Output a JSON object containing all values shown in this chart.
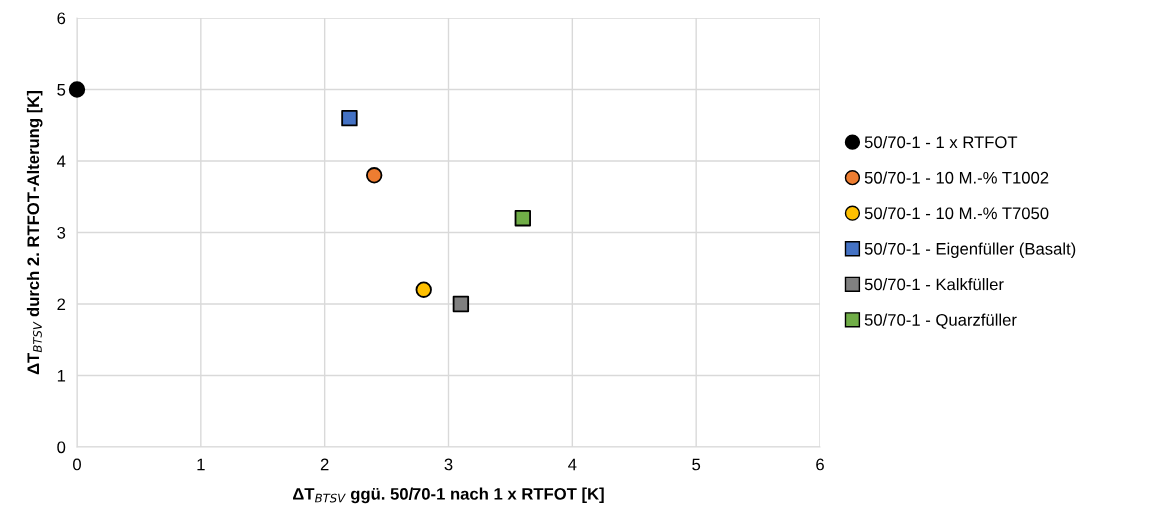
{
  "chart_data": {
    "type": "scatter",
    "xlabel": "ΔT$_{BTSV}$ ggü. 50/70-1 nach 1 x RTFOT [K]",
    "ylabel": "ΔT$_{BTSV}$ durch 2. RTFOT-Alterung [K]",
    "xlim": [
      0,
      6
    ],
    "xticks": [
      0,
      1,
      2,
      3,
      4,
      5,
      6
    ],
    "ylim": [
      0,
      6
    ],
    "yticks": [
      0,
      1,
      2,
      3,
      4,
      5,
      6
    ],
    "grid": true,
    "legend": "right",
    "series": [
      {
        "name": "50/70-1 - 1 x RTFOT",
        "color": "#000000",
        "marker": "circle",
        "x": [
          0
        ],
        "values": [
          5
        ]
      },
      {
        "name": "50/70-1 - 10 M.-% T1002",
        "color": "#ed7d31",
        "marker": "circle",
        "x": [
          2.4
        ],
        "values": [
          3.8
        ]
      },
      {
        "name": "50/70-1 - 10 M.-% T7050",
        "color": "#ffc000",
        "marker": "circle",
        "x": [
          2.8
        ],
        "values": [
          2.2
        ]
      },
      {
        "name": "50/70-1 - Eigenfüller (Basalt)",
        "color": "#4472c4",
        "marker": "square",
        "x": [
          2.2
        ],
        "values": [
          4.6
        ]
      },
      {
        "name": "50/70-1 - Kalkfüller",
        "color": "#808080",
        "marker": "square",
        "x": [
          3.1
        ],
        "values": [
          2.0
        ]
      },
      {
        "name": "50/70-1 - Quarzfüller",
        "color": "#70ad47",
        "marker": "square",
        "x": [
          3.6
        ],
        "values": [
          3.2
        ]
      }
    ]
  }
}
